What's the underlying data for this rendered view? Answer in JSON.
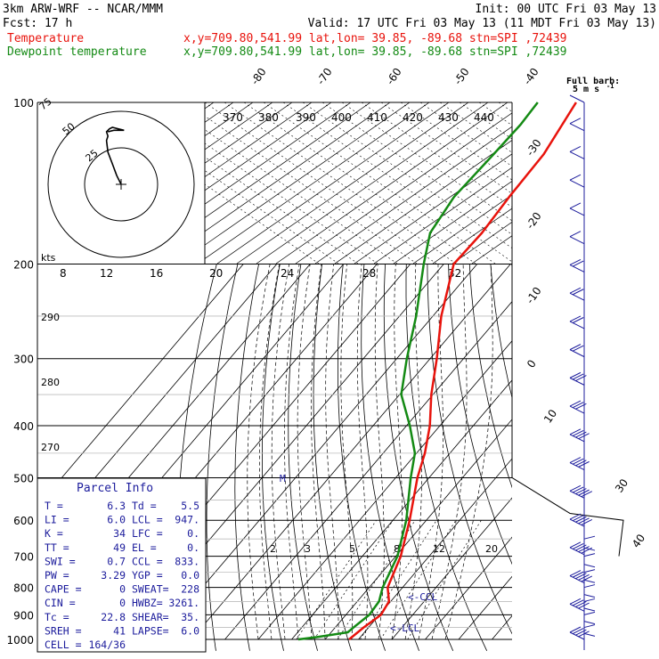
{
  "header": {
    "title": "3km ARW-WRF -- NCAR/MMM",
    "init": "Init: 00 UTC Fri 03 May 13",
    "fcst": "Fcst:   17 h",
    "valid": "Valid: 17 UTC Fri 03 May 13 (11 MDT Fri 03 May 13)",
    "temp_label": "Temperature",
    "temp_loc": "x,y=709.80,541.99   lat,lon= 39.85, -89.68  stn=SPI ,72439",
    "dew_label": "Dewpoint temperature",
    "dew_loc": "x,y=709.80,541.99   lat,lon= 39.85, -89.68  stn=SPI ,72439"
  },
  "colors": {
    "temperature": "#e8130c",
    "dewpoint": "#148a14",
    "wind": "#1c1c9c",
    "grid": "#000000"
  },
  "wind_legend": {
    "line1": "Full barb:",
    "line2": "5 m s",
    "exp": "-1"
  },
  "hodograph": {
    "unit": "kts",
    "ring_labels": [
      "25",
      "50",
      "75"
    ]
  },
  "parcel_info": {
    "title": "Parcel Info",
    "rows": [
      [
        "T  =",
        "6.3",
        "Td =",
        "5.5"
      ],
      [
        "LI =",
        "6.0",
        "LCL =",
        "947."
      ],
      [
        "K  =",
        "34",
        "LFC =",
        "0."
      ],
      [
        "TT =",
        "49",
        "EL  =",
        "0."
      ],
      [
        "SWI =",
        "0.7",
        "CCL =",
        "833."
      ],
      [
        "PW =",
        "3.29",
        "YGP =",
        "0.0"
      ],
      [
        "CAPE =",
        "0",
        "SWEAT=",
        "228"
      ],
      [
        "CIN =",
        "0",
        "HWBZ= ",
        "3261."
      ],
      [
        "Tc =",
        "22.8",
        "SHEAR=",
        "35."
      ],
      [
        "SREH =",
        "41",
        "LAPSE=",
        "6.0"
      ],
      [
        "CELL =",
        "164/36",
        "",
        ""
      ]
    ]
  },
  "annotations": {
    "ccl": "<-CCL",
    "lcl": "<-LCL",
    "level_marker": "M"
  },
  "chart_data": {
    "type": "line",
    "title": "Skew-T log-P sounding",
    "pressure_ticks": [
      {
        "p": 100,
        "label": "100"
      },
      {
        "p": 200,
        "label": "200"
      },
      {
        "p": 300,
        "label": "300"
      },
      {
        "p": 400,
        "label": "400"
      },
      {
        "p": 500,
        "label": "500"
      },
      {
        "p": 600,
        "label": "600"
      },
      {
        "p": 700,
        "label": "700"
      },
      {
        "p": 800,
        "label": "800"
      },
      {
        "p": 900,
        "label": "900"
      },
      {
        "p": 1000,
        "label": "1000"
      }
    ],
    "isotherm_labels": [
      "-80",
      "-70",
      "-60",
      "-50",
      "-40",
      "-30",
      "-20",
      "-10",
      "0",
      "10",
      "30",
      "40"
    ],
    "theta_e_labels": [
      "370",
      "380",
      "390",
      "400",
      "410",
      "420",
      "430",
      "440"
    ],
    "upper_scale_labels": [
      "8",
      "12",
      "16",
      "20",
      "24",
      "28",
      "32"
    ],
    "mixing_ratio_labels": [
      "2",
      "3",
      "5",
      "8",
      "12",
      "20"
    ],
    "dry_adiabat_labels": [
      "290",
      "280",
      "270"
    ],
    "series": [
      {
        "name": "Temperature",
        "pressure": [
          1000,
          950,
          900,
          850,
          800,
          700,
          600,
          500,
          450,
          400,
          350,
          300,
          250,
          200,
          175,
          150,
          125,
          110,
          100
        ],
        "temp_c": [
          7.2,
          8.5,
          10.5,
          9.5,
          5.5,
          1.5,
          -5.0,
          -13.5,
          -17.5,
          -23.0,
          -30.5,
          -38.0,
          -47.5,
          -57.0,
          -56.5,
          -57.5,
          -58.0,
          -60.0,
          -61.5
        ]
      },
      {
        "name": "Dewpoint temperature",
        "pressure": [
          1000,
          990,
          970,
          950,
          900,
          850,
          800,
          700,
          600,
          500,
          450,
          400,
          350,
          300,
          250,
          200,
          175,
          150,
          125,
          110,
          100
        ],
        "temp_c": [
          -8.0,
          -3.0,
          5.0,
          5.5,
          7.0,
          6.5,
          4.0,
          0.5,
          -6.0,
          -15.5,
          -20.5,
          -29.0,
          -39.5,
          -47.0,
          -55.0,
          -66.0,
          -72.0,
          -74.0,
          -73.0,
          -72.5,
          -73.0
        ]
      }
    ],
    "wind_speed_kt": [
      3,
      5,
      6,
      8,
      10,
      12,
      15,
      18,
      18,
      20,
      25,
      30,
      35,
      40,
      45,
      45,
      45,
      45,
      40,
      35
    ],
    "hodograph_uv_kt": [
      [
        0,
        0
      ],
      [
        -3,
        6
      ],
      [
        -6,
        14
      ],
      [
        -9,
        22
      ],
      [
        -10,
        30
      ],
      [
        -9,
        33
      ],
      [
        -10,
        36
      ],
      [
        -8,
        38
      ],
      [
        -6,
        39
      ],
      [
        -2,
        38
      ],
      [
        2,
        37
      ],
      [
        -5,
        37
      ],
      [
        -9,
        36
      ]
    ]
  }
}
